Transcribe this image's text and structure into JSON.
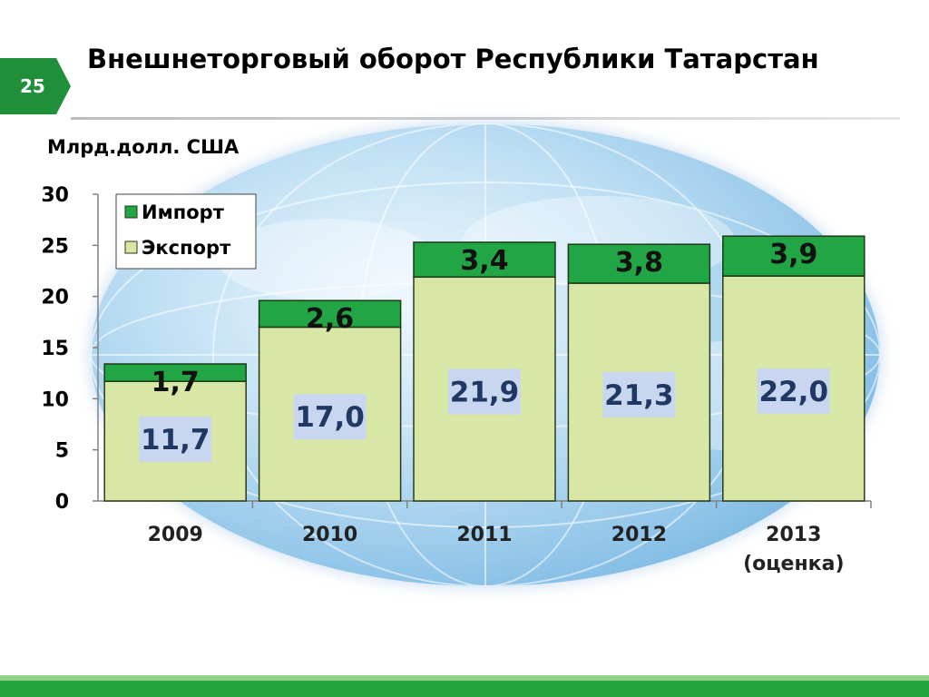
{
  "slide": {
    "number": "25",
    "title": "Внешнеторговый оборот Республики Татарстан"
  },
  "colors": {
    "badge": "#1f8f3a",
    "export_fill": "#d8e6a6",
    "import_fill": "#22a544",
    "value_box": "#c8d6ef",
    "footer": "#21a53c"
  },
  "chart_data": {
    "type": "bar",
    "stacked": true,
    "ylabel": "Млрд.долл. США",
    "ylim": [
      0,
      30
    ],
    "yticks": [
      0,
      5,
      10,
      15,
      20,
      25,
      30
    ],
    "grid": false,
    "legend_position": "top-left",
    "categories": [
      "2009",
      "2010",
      "2011",
      "2012",
      "2013\n(оценка)"
    ],
    "series": [
      {
        "name": "Экспорт",
        "values": [
          11.7,
          17.0,
          21.9,
          21.3,
          22.0
        ],
        "labels": [
          "11,7",
          "17,0",
          "21,9",
          "21,3",
          "22,0"
        ]
      },
      {
        "name": "Импорт",
        "values": [
          1.7,
          2.6,
          3.4,
          3.8,
          3.9
        ],
        "labels": [
          "1,7",
          "2,6",
          "3,4",
          "3,8",
          "3,9"
        ]
      }
    ]
  }
}
